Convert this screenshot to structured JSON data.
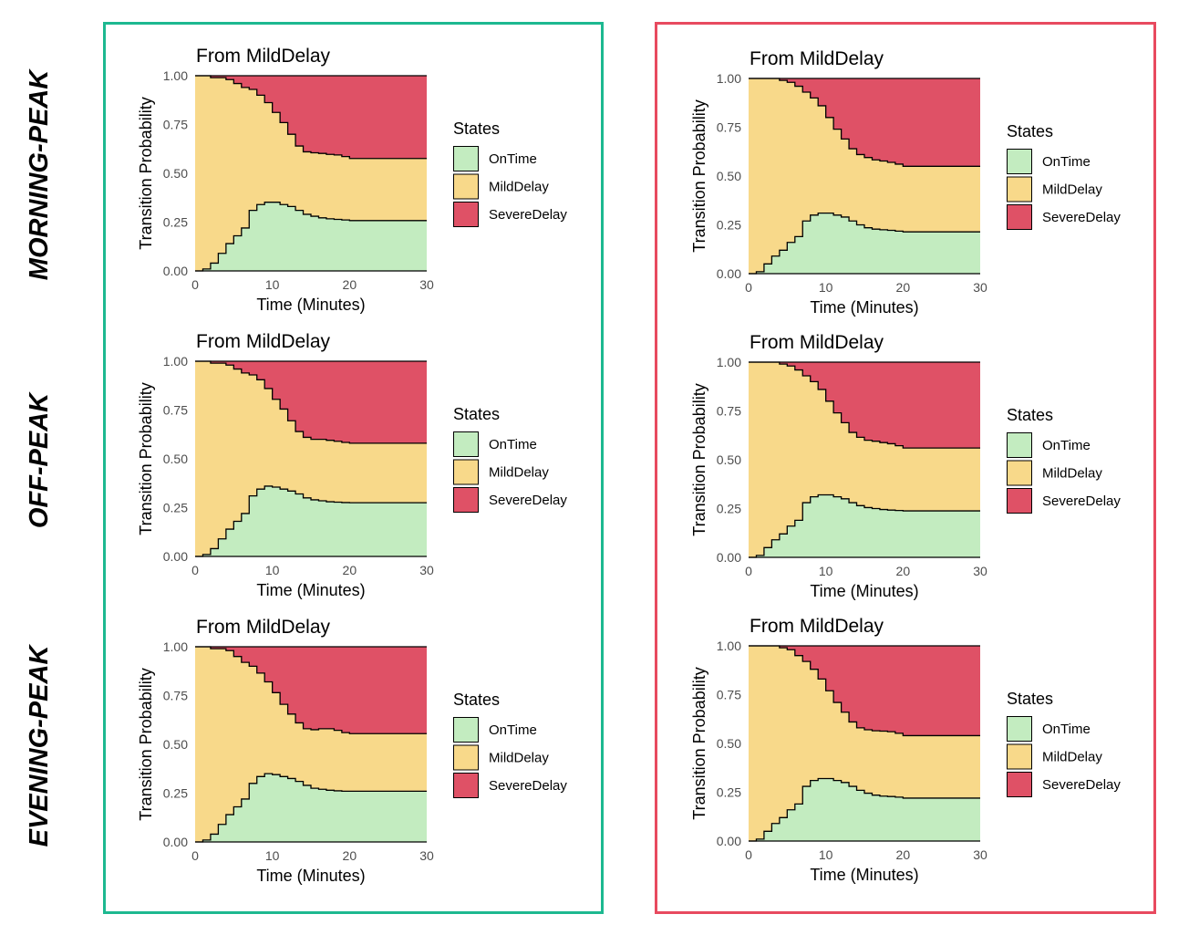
{
  "row_labels": [
    "MORNING-PEAK",
    "OFF-PEAK",
    "EVENING-PEAK"
  ],
  "group_colors": [
    "#1db890",
    "#e84a5f"
  ],
  "state_colors": {
    "OnTime": "#c3ecc0",
    "MildDelay": "#f8d98a",
    "SevereDelay": "#df5166"
  },
  "legend": {
    "title": "States",
    "items": [
      "OnTime",
      "MildDelay",
      "SevereDelay"
    ]
  },
  "chart_data": [
    {
      "type": "area",
      "group": "left",
      "row": "MORNING-PEAK",
      "title": "From MildDelay",
      "xlabel": "Time (Minutes)",
      "ylabel": "Transition Probability",
      "xlim": [
        0,
        30
      ],
      "ylim": [
        0,
        1
      ],
      "xticks": [
        "0",
        "10",
        "20",
        "30"
      ],
      "yticks": [
        "0.00",
        "0.25",
        "0.50",
        "0.75",
        "1.00"
      ],
      "x": [
        0,
        1,
        2,
        3,
        4,
        5,
        6,
        7,
        8,
        9,
        10,
        11,
        12,
        13,
        14,
        15,
        16,
        17,
        18,
        19,
        20,
        22,
        25,
        30
      ],
      "series": [
        {
          "name": "OnTime",
          "values": [
            0,
            0.01,
            0.04,
            0.09,
            0.14,
            0.18,
            0.22,
            0.31,
            0.34,
            0.352,
            0.352,
            0.34,
            0.33,
            0.31,
            0.29,
            0.28,
            0.272,
            0.267,
            0.264,
            0.261,
            0.258,
            0.258,
            0.258,
            0.258
          ]
        },
        {
          "name": "MildDelay",
          "values": [
            1,
            0.99,
            0.95,
            0.9,
            0.84,
            0.78,
            0.72,
            0.62,
            0.56,
            0.51,
            0.46,
            0.42,
            0.37,
            0.33,
            0.32,
            0.325,
            0.33,
            0.33,
            0.33,
            0.325,
            0.318,
            0.318,
            0.318,
            0.318
          ]
        },
        {
          "name": "SevereDelay",
          "values": [
            0,
            0,
            0.01,
            0.01,
            0.02,
            0.04,
            0.06,
            0.07,
            0.1,
            0.138,
            0.188,
            0.24,
            0.3,
            0.36,
            0.39,
            0.395,
            0.398,
            0.403,
            0.406,
            0.414,
            0.424,
            0.424,
            0.424,
            0.424
          ]
        }
      ]
    },
    {
      "type": "area",
      "group": "right",
      "row": "MORNING-PEAK",
      "title": "From MildDelay",
      "xlabel": "Time (Minutes)",
      "ylabel": "Transition Probability",
      "xlim": [
        0,
        30
      ],
      "ylim": [
        0,
        1
      ],
      "xticks": [
        "0",
        "10",
        "20",
        "30"
      ],
      "yticks": [
        "0.00",
        "0.25",
        "0.50",
        "0.75",
        "1.00"
      ],
      "x": [
        0,
        1,
        2,
        3,
        4,
        5,
        6,
        7,
        8,
        9,
        10,
        11,
        12,
        13,
        14,
        15,
        16,
        17,
        18,
        19,
        20,
        22,
        25,
        30
      ],
      "series": [
        {
          "name": "OnTime",
          "values": [
            0,
            0.01,
            0.05,
            0.09,
            0.12,
            0.16,
            0.19,
            0.27,
            0.3,
            0.31,
            0.31,
            0.3,
            0.29,
            0.27,
            0.25,
            0.235,
            0.228,
            0.225,
            0.222,
            0.218,
            0.214,
            0.214,
            0.214,
            0.214
          ]
        },
        {
          "name": "MildDelay",
          "values": [
            1,
            0.99,
            0.95,
            0.91,
            0.87,
            0.82,
            0.77,
            0.66,
            0.6,
            0.55,
            0.49,
            0.44,
            0.4,
            0.37,
            0.36,
            0.36,
            0.355,
            0.352,
            0.348,
            0.343,
            0.336,
            0.336,
            0.336,
            0.336
          ]
        },
        {
          "name": "SevereDelay",
          "values": [
            0,
            0,
            0,
            0,
            0.01,
            0.02,
            0.04,
            0.07,
            0.1,
            0.14,
            0.2,
            0.26,
            0.31,
            0.36,
            0.39,
            0.405,
            0.417,
            0.423,
            0.43,
            0.439,
            0.45,
            0.45,
            0.45,
            0.45
          ]
        }
      ]
    },
    {
      "type": "area",
      "group": "left",
      "row": "OFF-PEAK",
      "title": "From MildDelay",
      "xlabel": "Time (Minutes)",
      "ylabel": "Transition Probability",
      "xlim": [
        0,
        30
      ],
      "ylim": [
        0,
        1
      ],
      "xticks": [
        "0",
        "10",
        "20",
        "30"
      ],
      "yticks": [
        "0.00",
        "0.25",
        "0.50",
        "0.75",
        "1.00"
      ],
      "x": [
        0,
        1,
        2,
        3,
        4,
        5,
        6,
        7,
        8,
        9,
        10,
        11,
        12,
        13,
        14,
        15,
        16,
        17,
        18,
        19,
        20,
        22,
        25,
        30
      ],
      "series": [
        {
          "name": "OnTime",
          "values": [
            0,
            0.01,
            0.04,
            0.09,
            0.14,
            0.18,
            0.22,
            0.31,
            0.345,
            0.36,
            0.355,
            0.345,
            0.335,
            0.32,
            0.3,
            0.29,
            0.285,
            0.28,
            0.278,
            0.276,
            0.275,
            0.275,
            0.275,
            0.275
          ]
        },
        {
          "name": "MildDelay",
          "values": [
            1,
            0.99,
            0.95,
            0.9,
            0.84,
            0.78,
            0.72,
            0.62,
            0.56,
            0.5,
            0.45,
            0.41,
            0.36,
            0.32,
            0.31,
            0.31,
            0.315,
            0.315,
            0.312,
            0.308,
            0.305,
            0.305,
            0.305,
            0.305
          ]
        },
        {
          "name": "SevereDelay",
          "values": [
            0,
            0,
            0.01,
            0.01,
            0.02,
            0.04,
            0.06,
            0.07,
            0.095,
            0.14,
            0.195,
            0.245,
            0.305,
            0.36,
            0.39,
            0.4,
            0.4,
            0.405,
            0.41,
            0.416,
            0.42,
            0.42,
            0.42,
            0.42
          ]
        }
      ]
    },
    {
      "type": "area",
      "group": "right",
      "row": "OFF-PEAK",
      "title": "From MildDelay",
      "xlabel": "Time (Minutes)",
      "ylabel": "Transition Probability",
      "xlim": [
        0,
        30
      ],
      "ylim": [
        0,
        1
      ],
      "xticks": [
        "0",
        "10",
        "20",
        "30"
      ],
      "yticks": [
        "0.00",
        "0.25",
        "0.50",
        "0.75",
        "1.00"
      ],
      "x": [
        0,
        1,
        2,
        3,
        4,
        5,
        6,
        7,
        8,
        9,
        10,
        11,
        12,
        13,
        14,
        15,
        16,
        17,
        18,
        19,
        20,
        22,
        25,
        30
      ],
      "series": [
        {
          "name": "OnTime",
          "values": [
            0,
            0.01,
            0.05,
            0.09,
            0.12,
            0.16,
            0.19,
            0.28,
            0.31,
            0.32,
            0.32,
            0.31,
            0.3,
            0.28,
            0.265,
            0.255,
            0.25,
            0.245,
            0.242,
            0.24,
            0.238,
            0.238,
            0.238,
            0.238
          ]
        },
        {
          "name": "MildDelay",
          "values": [
            1,
            0.99,
            0.95,
            0.91,
            0.87,
            0.82,
            0.77,
            0.65,
            0.59,
            0.54,
            0.48,
            0.43,
            0.39,
            0.36,
            0.35,
            0.345,
            0.345,
            0.343,
            0.34,
            0.332,
            0.322,
            0.322,
            0.322,
            0.322
          ]
        },
        {
          "name": "SevereDelay",
          "values": [
            0,
            0,
            0,
            0,
            0.01,
            0.02,
            0.04,
            0.07,
            0.1,
            0.14,
            0.2,
            0.26,
            0.31,
            0.36,
            0.385,
            0.4,
            0.405,
            0.412,
            0.418,
            0.428,
            0.44,
            0.44,
            0.44,
            0.44
          ]
        }
      ]
    },
    {
      "type": "area",
      "group": "left",
      "row": "EVENING-PEAK",
      "title": "From MildDelay",
      "xlabel": "Time (Minutes)",
      "ylabel": "Transition Probability",
      "xlim": [
        0,
        30
      ],
      "ylim": [
        0,
        1
      ],
      "xticks": [
        "0",
        "10",
        "20",
        "30"
      ],
      "yticks": [
        "0.00",
        "0.25",
        "0.50",
        "0.75",
        "1.00"
      ],
      "x": [
        0,
        1,
        2,
        3,
        4,
        5,
        6,
        7,
        8,
        9,
        10,
        11,
        12,
        13,
        14,
        15,
        16,
        17,
        18,
        19,
        20,
        22,
        25,
        30
      ],
      "series": [
        {
          "name": "OnTime",
          "values": [
            0,
            0.01,
            0.04,
            0.09,
            0.14,
            0.18,
            0.22,
            0.3,
            0.335,
            0.35,
            0.345,
            0.335,
            0.325,
            0.31,
            0.29,
            0.275,
            0.27,
            0.265,
            0.262,
            0.26,
            0.26,
            0.26,
            0.26,
            0.26
          ]
        },
        {
          "name": "MildDelay",
          "values": [
            1,
            0.99,
            0.95,
            0.9,
            0.84,
            0.77,
            0.7,
            0.6,
            0.53,
            0.47,
            0.42,
            0.37,
            0.33,
            0.3,
            0.29,
            0.3,
            0.31,
            0.315,
            0.31,
            0.3,
            0.295,
            0.295,
            0.295,
            0.295
          ]
        },
        {
          "name": "SevereDelay",
          "values": [
            0,
            0,
            0.01,
            0.01,
            0.02,
            0.05,
            0.08,
            0.1,
            0.135,
            0.18,
            0.235,
            0.295,
            0.345,
            0.39,
            0.42,
            0.425,
            0.42,
            0.42,
            0.428,
            0.44,
            0.445,
            0.445,
            0.445,
            0.445
          ]
        }
      ]
    },
    {
      "type": "area",
      "group": "right",
      "row": "EVENING-PEAK",
      "title": "From MildDelay",
      "xlabel": "Time (Minutes)",
      "ylabel": "Transition Probability",
      "xlim": [
        0,
        30
      ],
      "ylim": [
        0,
        1
      ],
      "xticks": [
        "0",
        "10",
        "20",
        "30"
      ],
      "yticks": [
        "0.00",
        "0.25",
        "0.50",
        "0.75",
        "1.00"
      ],
      "x": [
        0,
        1,
        2,
        3,
        4,
        5,
        6,
        7,
        8,
        9,
        10,
        11,
        12,
        13,
        14,
        15,
        16,
        17,
        18,
        19,
        20,
        22,
        25,
        30
      ],
      "series": [
        {
          "name": "OnTime",
          "values": [
            0,
            0.01,
            0.05,
            0.09,
            0.12,
            0.16,
            0.19,
            0.28,
            0.31,
            0.32,
            0.32,
            0.31,
            0.3,
            0.28,
            0.26,
            0.245,
            0.235,
            0.23,
            0.228,
            0.225,
            0.22,
            0.22,
            0.22,
            0.22
          ]
        },
        {
          "name": "MildDelay",
          "values": [
            1,
            0.99,
            0.95,
            0.91,
            0.87,
            0.82,
            0.76,
            0.64,
            0.57,
            0.51,
            0.45,
            0.4,
            0.36,
            0.33,
            0.32,
            0.325,
            0.33,
            0.333,
            0.332,
            0.327,
            0.32,
            0.32,
            0.32,
            0.32
          ]
        },
        {
          "name": "SevereDelay",
          "values": [
            0,
            0,
            0,
            0,
            0.01,
            0.02,
            0.05,
            0.08,
            0.12,
            0.17,
            0.23,
            0.29,
            0.34,
            0.39,
            0.42,
            0.43,
            0.435,
            0.437,
            0.44,
            0.448,
            0.46,
            0.46,
            0.46,
            0.46
          ]
        }
      ]
    }
  ]
}
